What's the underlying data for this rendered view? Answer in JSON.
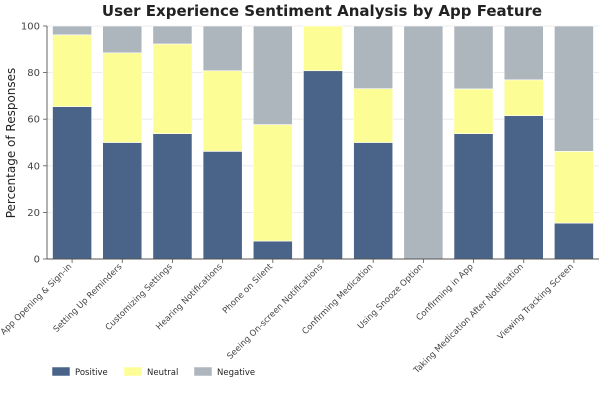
{
  "chart_data": {
    "type": "bar",
    "stacked": true,
    "title": "User Experience Sentiment Analysis by App Feature",
    "ylabel": "Percentage of Responses",
    "xlabel": "",
    "ylim": [
      0,
      100
    ],
    "yticks": [
      0,
      20,
      40,
      60,
      80,
      100
    ],
    "grid": "horizontal",
    "legend_position": "bottom-left",
    "categories": [
      "App Opening & Sign-in",
      "Setting Up Reminders",
      "Customizing Settings",
      "Hearing Notifications",
      "Phone on Silent",
      "Seeing On-screen Notifications",
      "Confirming Medication",
      "Using Snooze Option",
      "Confirming in App",
      "Taking Medication After Notification",
      "Viewing Tracking Screen"
    ],
    "series": [
      {
        "name": "Positive",
        "color": "#4a6388",
        "values": [
          65.4,
          50.0,
          53.8,
          46.2,
          7.7,
          80.8,
          50.0,
          0.0,
          53.8,
          61.5,
          15.4
        ]
      },
      {
        "name": "Neutral",
        "color": "#fdfd96",
        "values": [
          30.8,
          38.5,
          38.5,
          34.6,
          50.0,
          19.2,
          23.1,
          0.0,
          19.2,
          15.4,
          30.8
        ]
      },
      {
        "name": "Negative",
        "color": "#adb5bd",
        "values": [
          3.8,
          11.5,
          7.7,
          19.2,
          42.3,
          0.0,
          26.9,
          100.0,
          27.0,
          23.1,
          53.8
        ]
      }
    ]
  }
}
